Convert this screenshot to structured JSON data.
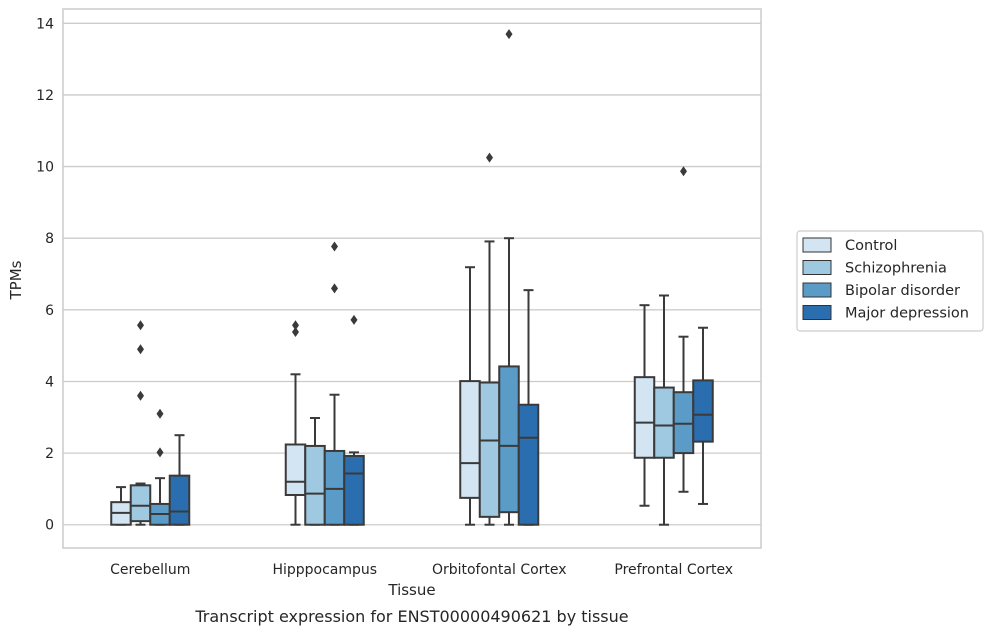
{
  "chart_data": {
    "type": "box",
    "title": "",
    "caption": "Transcript expression for ENST00000490621 by tissue",
    "xlabel": "Tissue",
    "ylabel": "TPMs",
    "ylim": [
      -0.65,
      14.4
    ],
    "yticks": [
      0,
      2,
      4,
      6,
      8,
      10,
      12,
      14
    ],
    "grid": "horizontal",
    "legend_position": "right",
    "categories": [
      "Cerebellum",
      "Hipppocampus",
      "Orbitofontal Cortex",
      "Prefrontal Cortex"
    ],
    "series": [
      {
        "name": "Control",
        "color": "#d3e4f3",
        "boxes": [
          {
            "whislo": 0.0,
            "q1": 0.0,
            "med": 0.33,
            "q3": 0.63,
            "whishi": 1.05,
            "fliers": []
          },
          {
            "whislo": 0.0,
            "q1": 0.83,
            "med": 1.2,
            "q3": 2.24,
            "whishi": 4.2,
            "fliers": [
              5.38,
              5.57
            ]
          },
          {
            "whislo": 0.0,
            "q1": 0.75,
            "med": 1.72,
            "q3": 4.01,
            "whishi": 7.19,
            "fliers": []
          },
          {
            "whislo": 0.53,
            "q1": 1.87,
            "med": 2.85,
            "q3": 4.12,
            "whishi": 6.13,
            "fliers": []
          }
        ]
      },
      {
        "name": "Schizophrenia",
        "color": "#9fc8e1",
        "boxes": [
          {
            "whislo": 0.0,
            "q1": 0.1,
            "med": 0.53,
            "q3": 1.1,
            "whishi": 1.15,
            "fliers": [
              3.6,
              4.9,
              5.57
            ]
          },
          {
            "whislo": 0.0,
            "q1": 0.0,
            "med": 0.87,
            "q3": 2.2,
            "whishi": 2.98,
            "fliers": []
          },
          {
            "whislo": 0.0,
            "q1": 0.22,
            "med": 2.35,
            "q3": 3.97,
            "whishi": 7.91,
            "fliers": [
              10.25
            ]
          },
          {
            "whislo": 0.0,
            "q1": 1.87,
            "med": 2.77,
            "q3": 3.83,
            "whishi": 6.4,
            "fliers": []
          }
        ]
      },
      {
        "name": "Bipolar disorder",
        "color": "#5b9bc8",
        "boxes": [
          {
            "whislo": 0.0,
            "q1": 0.0,
            "med": 0.3,
            "q3": 0.58,
            "whishi": 1.3,
            "fliers": [
              2.02,
              3.1
            ]
          },
          {
            "whislo": 0.0,
            "q1": 0.0,
            "med": 1.0,
            "q3": 2.06,
            "whishi": 3.63,
            "fliers": [
              6.6,
              7.77
            ]
          },
          {
            "whislo": 0.0,
            "q1": 0.35,
            "med": 2.2,
            "q3": 4.42,
            "whishi": 8.0,
            "fliers": [
              13.7
            ]
          },
          {
            "whislo": 0.92,
            "q1": 2.0,
            "med": 2.82,
            "q3": 3.7,
            "whishi": 5.25,
            "fliers": [
              9.87
            ]
          }
        ]
      },
      {
        "name": "Major depression",
        "color": "#2a6eb0",
        "boxes": [
          {
            "whislo": 0.0,
            "q1": 0.0,
            "med": 0.37,
            "q3": 1.37,
            "whishi": 2.5,
            "fliers": []
          },
          {
            "whislo": 0.0,
            "q1": 0.0,
            "med": 1.43,
            "q3": 1.92,
            "whishi": 2.02,
            "fliers": [
              5.72
            ]
          },
          {
            "whislo": 0.0,
            "q1": 0.0,
            "med": 2.43,
            "q3": 3.35,
            "whishi": 6.55,
            "fliers": []
          },
          {
            "whislo": 0.58,
            "q1": 2.32,
            "med": 3.07,
            "q3": 4.03,
            "whishi": 5.5,
            "fliers": []
          }
        ]
      }
    ]
  }
}
